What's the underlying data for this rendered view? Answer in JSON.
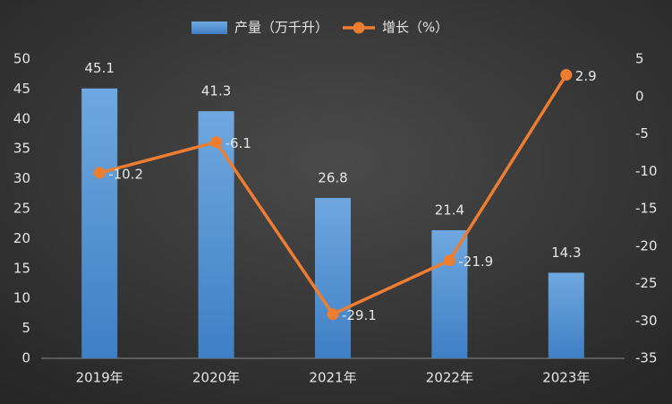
{
  "chart_data": {
    "type": "bar",
    "categories": [
      "2019年",
      "2020年",
      "2021年",
      "2022年",
      "2023年"
    ],
    "series": [
      {
        "name": "产量（万千升）",
        "type": "bar",
        "color": "#5b9bd5",
        "values": [
          45.1,
          41.3,
          26.8,
          21.4,
          14.3
        ]
      },
      {
        "name": "增长（%）",
        "type": "line",
        "axis": "y2",
        "color": "#ed7d31",
        "values": [
          -10.2,
          -6.1,
          -29.1,
          -21.9,
          2.9
        ]
      }
    ],
    "ylim": [
      0,
      50
    ],
    "yticks": [
      0,
      5,
      10,
      15,
      20,
      25,
      30,
      35,
      40,
      45,
      50
    ],
    "y2lim": [
      -35,
      5
    ],
    "y2ticks": [
      -35,
      -30,
      -25,
      -20,
      -15,
      -10,
      -5,
      0,
      5
    ],
    "grid": false,
    "legend": "top"
  }
}
